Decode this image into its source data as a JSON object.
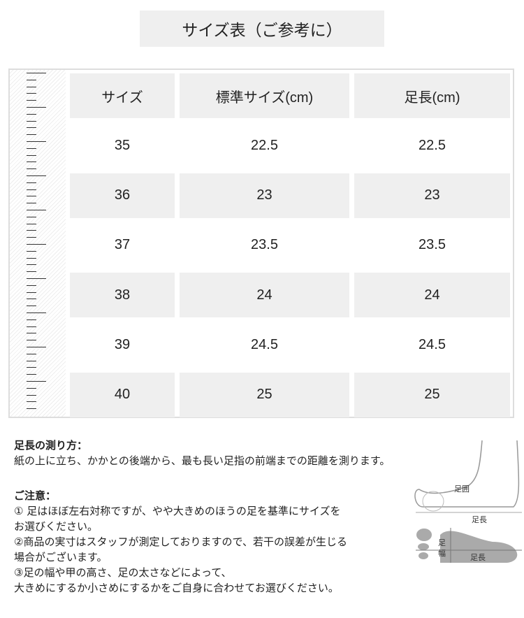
{
  "title": "サイズ表（ご参考に）",
  "table": {
    "headers": [
      "サイズ",
      "標準サイズ(cm)",
      "足長(cm)"
    ],
    "rows": [
      [
        "35",
        "22.5",
        "22.5"
      ],
      [
        "36",
        "23",
        "23"
      ],
      [
        "37",
        "23.5",
        "23.5"
      ],
      [
        "38",
        "24",
        "24"
      ],
      [
        "39",
        "24.5",
        "24.5"
      ],
      [
        "40",
        "25",
        "25"
      ]
    ]
  },
  "measure": {
    "heading": "足長の測り方：",
    "text": "紙の上に立ち、かかとの後端から、最も長い足指の前端までの距離を測ります。"
  },
  "notes": {
    "heading": "ご注意：",
    "lines": [
      "① 足はほぼ左右対称ですが、やや大きめのほうの足を基準にサイズを",
      "お選びください。",
      "②商品の実寸はスタッフが測定しておりますので、若干の誤差が生じる",
      "場合がございます。",
      "③足の幅や甲の高さ、足の太さなどによって、",
      "大きめにするか小さめにするかをご自身に合わせてお選びください。"
    ]
  },
  "diagram": {
    "girth": "足囲",
    "length": "足長",
    "width": "足幅",
    "length2": "足長"
  }
}
